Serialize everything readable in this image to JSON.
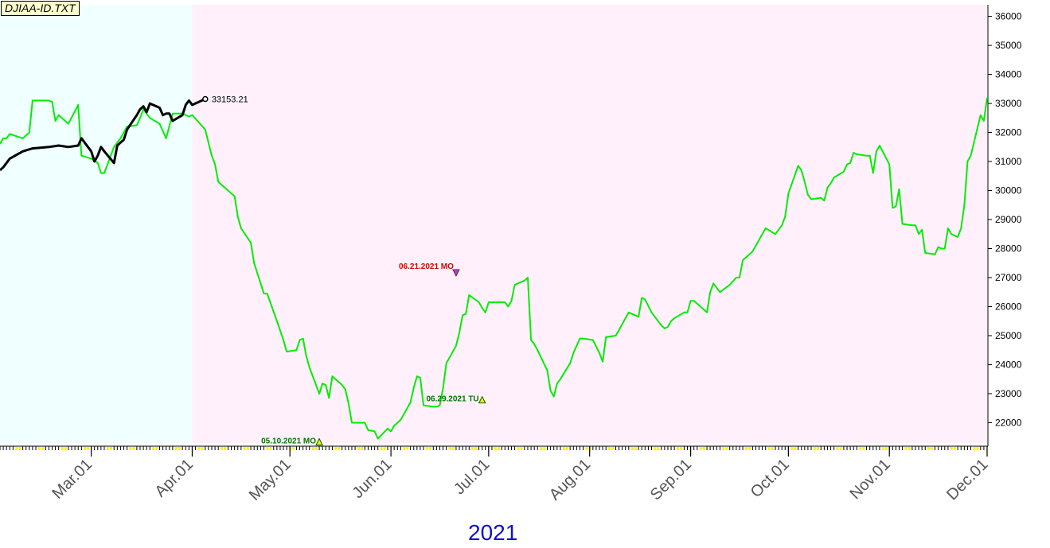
{
  "file_label": "DJIAA-ID.TXT",
  "chart_data": {
    "type": "line",
    "x_axis": {
      "tick_labels": [
        "Mar.01",
        "Apr.01",
        "May.01",
        "Jun.01",
        "Jul.01",
        "Aug.01",
        "Sep.01",
        "Oct.01",
        "Nov.01",
        "Dec.01"
      ],
      "year_label": "2021",
      "range": [
        "2021-02-01",
        "2021-12-01"
      ]
    },
    "y_axis": {
      "tick_labels": [
        "22000",
        "23000",
        "24000",
        "25000",
        "26000",
        "27000",
        "28000",
        "29000",
        "30000",
        "31000",
        "32000",
        "33000",
        "34000",
        "35000",
        "36000"
      ],
      "ylim": [
        21300,
        36400
      ],
      "position": "right"
    },
    "regions": [
      {
        "from": "2021-02-01",
        "to": "2021-04-01",
        "color": "#f0ffff"
      },
      {
        "from": "2021-04-01",
        "to": "2021-12-01",
        "color": "#fff0fb"
      }
    ],
    "series": [
      {
        "color": "#00ee00",
        "points": [
          [
            "2021-02-01",
            31600
          ],
          [
            "2021-02-02",
            31800
          ],
          [
            "2021-02-03",
            31800
          ],
          [
            "2021-02-04",
            31950
          ],
          [
            "2021-02-08",
            31800
          ],
          [
            "2021-02-10",
            32000
          ],
          [
            "2021-02-11",
            33100
          ],
          [
            "2021-02-16",
            33100
          ],
          [
            "2021-02-17",
            33050
          ],
          [
            "2021-02-18",
            32400
          ],
          [
            "2021-02-19",
            32600
          ],
          [
            "2021-02-22",
            32300
          ],
          [
            "2021-02-25",
            32950
          ],
          [
            "2021-02-26",
            31200
          ],
          [
            "2021-03-01",
            31100
          ],
          [
            "2021-03-03",
            30950
          ],
          [
            "2021-03-04",
            30600
          ],
          [
            "2021-03-05",
            30600
          ],
          [
            "2021-03-08",
            31500
          ],
          [
            "2021-03-10",
            31800
          ],
          [
            "2021-03-11",
            32000
          ],
          [
            "2021-03-12",
            32200
          ],
          [
            "2021-03-15",
            32250
          ],
          [
            "2021-03-16",
            32500
          ],
          [
            "2021-03-17",
            32800
          ],
          [
            "2021-03-19",
            32500
          ],
          [
            "2021-03-22",
            32300
          ],
          [
            "2021-03-24",
            31800
          ],
          [
            "2021-03-26",
            32650
          ],
          [
            "2021-03-29",
            32650
          ],
          [
            "2021-03-31",
            32550
          ],
          [
            "2021-04-01",
            32600
          ],
          [
            "2021-04-05",
            32100
          ],
          [
            "2021-04-07",
            31200
          ],
          [
            "2021-04-08",
            30900
          ],
          [
            "2021-04-09",
            30300
          ],
          [
            "2021-04-12",
            30000
          ],
          [
            "2021-04-13",
            29900
          ],
          [
            "2021-04-14",
            29800
          ],
          [
            "2021-04-15",
            29100
          ],
          [
            "2021-04-16",
            28700
          ],
          [
            "2021-04-19",
            28200
          ],
          [
            "2021-04-20",
            27500
          ],
          [
            "2021-04-23",
            26450
          ],
          [
            "2021-04-24",
            26450
          ],
          [
            "2021-04-27",
            25500
          ],
          [
            "2021-04-29",
            24850
          ],
          [
            "2021-04-30",
            24450
          ],
          [
            "2021-05-03",
            24500
          ],
          [
            "2021-05-04",
            24850
          ],
          [
            "2021-05-05",
            24900
          ],
          [
            "2021-05-06",
            24300
          ],
          [
            "2021-05-07",
            23900
          ],
          [
            "2021-05-10",
            23000
          ],
          [
            "2021-05-11",
            23350
          ],
          [
            "2021-05-12",
            23300
          ],
          [
            "2021-05-13",
            22850
          ],
          [
            "2021-05-14",
            23600
          ],
          [
            "2021-05-17",
            23300
          ],
          [
            "2021-05-18",
            23150
          ],
          [
            "2021-05-19",
            22650
          ],
          [
            "2021-05-20",
            22000
          ],
          [
            "2021-05-24",
            22000
          ],
          [
            "2021-05-25",
            21750
          ],
          [
            "2021-05-27",
            21700
          ],
          [
            "2021-05-28",
            21450
          ],
          [
            "2021-05-31",
            21800
          ],
          [
            "2021-06-01",
            21700
          ],
          [
            "2021-06-02",
            21900
          ],
          [
            "2021-06-04",
            22100
          ],
          [
            "2021-06-07",
            22700
          ],
          [
            "2021-06-08",
            23200
          ],
          [
            "2021-06-09",
            23600
          ],
          [
            "2021-06-10",
            23550
          ],
          [
            "2021-06-11",
            22600
          ],
          [
            "2021-06-14",
            22550
          ],
          [
            "2021-06-15",
            22550
          ],
          [
            "2021-06-16",
            22600
          ],
          [
            "2021-06-17",
            23200
          ],
          [
            "2021-06-18",
            24050
          ],
          [
            "2021-06-21",
            24650
          ],
          [
            "2021-06-22",
            25100
          ],
          [
            "2021-06-23",
            25700
          ],
          [
            "2021-06-24",
            25750
          ],
          [
            "2021-06-25",
            26400
          ],
          [
            "2021-06-28",
            26150
          ],
          [
            "2021-06-29",
            25950
          ],
          [
            "2021-06-30",
            25800
          ],
          [
            "2021-07-01",
            26150
          ],
          [
            "2021-07-02",
            26150
          ],
          [
            "2021-07-05",
            26150
          ],
          [
            "2021-07-06",
            26150
          ],
          [
            "2021-07-07",
            26000
          ],
          [
            "2021-07-08",
            26200
          ],
          [
            "2021-07-09",
            26750
          ],
          [
            "2021-07-12",
            26900
          ],
          [
            "2021-07-13",
            27000
          ],
          [
            "2021-07-14",
            24850
          ],
          [
            "2021-07-15",
            24700
          ],
          [
            "2021-07-16",
            24500
          ],
          [
            "2021-07-19",
            23800
          ],
          [
            "2021-07-20",
            23100
          ],
          [
            "2021-07-21",
            22900
          ],
          [
            "2021-07-22",
            23350
          ],
          [
            "2021-07-23",
            23500
          ],
          [
            "2021-07-26",
            24050
          ],
          [
            "2021-07-27",
            24400
          ],
          [
            "2021-07-29",
            24900
          ],
          [
            "2021-07-30",
            24900
          ],
          [
            "2021-08-02",
            24850
          ],
          [
            "2021-08-04",
            24400
          ],
          [
            "2021-08-05",
            24100
          ],
          [
            "2021-08-06",
            24950
          ],
          [
            "2021-08-09",
            25000
          ],
          [
            "2021-08-10",
            25200
          ],
          [
            "2021-08-11",
            25400
          ],
          [
            "2021-08-12",
            25600
          ],
          [
            "2021-08-13",
            25800
          ],
          [
            "2021-08-16",
            25650
          ],
          [
            "2021-08-17",
            26300
          ],
          [
            "2021-08-18",
            26250
          ],
          [
            "2021-08-20",
            25800
          ],
          [
            "2021-08-23",
            25350
          ],
          [
            "2021-08-24",
            25250
          ],
          [
            "2021-08-25",
            25300
          ],
          [
            "2021-08-26",
            25500
          ],
          [
            "2021-08-27",
            25600
          ],
          [
            "2021-08-30",
            25800
          ],
          [
            "2021-08-31",
            25800
          ],
          [
            "2021-09-01",
            26200
          ],
          [
            "2021-09-02",
            26200
          ],
          [
            "2021-09-06",
            25800
          ],
          [
            "2021-09-07",
            26500
          ],
          [
            "2021-09-08",
            26800
          ],
          [
            "2021-09-09",
            26650
          ],
          [
            "2021-09-10",
            26500
          ],
          [
            "2021-09-13",
            26750
          ],
          [
            "2021-09-15",
            27000
          ],
          [
            "2021-09-16",
            27000
          ],
          [
            "2021-09-17",
            27600
          ],
          [
            "2021-09-20",
            27900
          ],
          [
            "2021-09-21",
            28100
          ],
          [
            "2021-09-22",
            28300
          ],
          [
            "2021-09-24",
            28700
          ],
          [
            "2021-09-27",
            28500
          ],
          [
            "2021-09-28",
            28650
          ],
          [
            "2021-09-29",
            28800
          ],
          [
            "2021-09-30",
            29100
          ],
          [
            "2021-10-01",
            29900
          ],
          [
            "2021-10-04",
            30850
          ],
          [
            "2021-10-05",
            30700
          ],
          [
            "2021-10-06",
            30300
          ],
          [
            "2021-10-07",
            29850
          ],
          [
            "2021-10-08",
            29700
          ],
          [
            "2021-10-11",
            29750
          ],
          [
            "2021-10-12",
            29650
          ],
          [
            "2021-10-13",
            30100
          ],
          [
            "2021-10-14",
            30250
          ],
          [
            "2021-10-15",
            30450
          ],
          [
            "2021-10-18",
            30650
          ],
          [
            "2021-10-19",
            30900
          ],
          [
            "2021-10-20",
            30950
          ],
          [
            "2021-10-21",
            31300
          ],
          [
            "2021-10-22",
            31250
          ],
          [
            "2021-10-25",
            31200
          ],
          [
            "2021-10-26",
            31200
          ],
          [
            "2021-10-27",
            30600
          ],
          [
            "2021-10-28",
            31350
          ],
          [
            "2021-10-29",
            31550
          ],
          [
            "2021-11-01",
            30900
          ],
          [
            "2021-11-02",
            29400
          ],
          [
            "2021-11-03",
            29450
          ],
          [
            "2021-11-04",
            30050
          ],
          [
            "2021-11-05",
            28850
          ],
          [
            "2021-11-08",
            28800
          ],
          [
            "2021-11-09",
            28800
          ],
          [
            "2021-11-10",
            28500
          ],
          [
            "2021-11-11",
            28650
          ],
          [
            "2021-11-12",
            27850
          ],
          [
            "2021-11-15",
            27800
          ],
          [
            "2021-11-16",
            28050
          ],
          [
            "2021-11-17",
            28000
          ],
          [
            "2021-11-18",
            28000
          ],
          [
            "2021-11-19",
            28700
          ],
          [
            "2021-11-20",
            28500
          ],
          [
            "2021-11-22",
            28400
          ],
          [
            "2021-11-23",
            28700
          ],
          [
            "2021-11-24",
            29500
          ],
          [
            "2021-11-25",
            31000
          ],
          [
            "2021-11-26",
            31200
          ],
          [
            "2021-11-29",
            32600
          ],
          [
            "2021-11-30",
            32400
          ],
          [
            "2021-12-01",
            33200
          ]
        ]
      },
      {
        "color": "#000000",
        "points": [
          [
            "2021-02-01",
            30700
          ],
          [
            "2021-02-02",
            30800
          ],
          [
            "2021-02-04",
            31100
          ],
          [
            "2021-02-08",
            31350
          ],
          [
            "2021-02-11",
            31450
          ],
          [
            "2021-02-16",
            31500
          ],
          [
            "2021-02-19",
            31550
          ],
          [
            "2021-02-22",
            31500
          ],
          [
            "2021-02-25",
            31550
          ],
          [
            "2021-02-26",
            31800
          ],
          [
            "2021-03-01",
            31350
          ],
          [
            "2021-03-02",
            31000
          ],
          [
            "2021-03-03",
            31200
          ],
          [
            "2021-03-04",
            31500
          ],
          [
            "2021-03-05",
            31350
          ],
          [
            "2021-03-08",
            30950
          ],
          [
            "2021-03-09",
            31550
          ],
          [
            "2021-03-10",
            31650
          ],
          [
            "2021-03-11",
            31750
          ],
          [
            "2021-03-12",
            32100
          ],
          [
            "2021-03-15",
            32600
          ],
          [
            "2021-03-16",
            32800
          ],
          [
            "2021-03-17",
            32900
          ],
          [
            "2021-03-18",
            32700
          ],
          [
            "2021-03-19",
            33000
          ],
          [
            "2021-03-22",
            32850
          ],
          [
            "2021-03-23",
            32600
          ],
          [
            "2021-03-24",
            32650
          ],
          [
            "2021-03-25",
            32650
          ],
          [
            "2021-03-26",
            32400
          ],
          [
            "2021-03-29",
            32600
          ],
          [
            "2021-03-30",
            32950
          ],
          [
            "2021-03-31",
            33100
          ],
          [
            "2021-04-01",
            32950
          ],
          [
            "2021-04-05",
            33153.21
          ]
        ],
        "last_value_label": "33153.21"
      }
    ],
    "annotations": [
      {
        "date": "2021-06-21",
        "value": 27000,
        "text": "06.21.2021 MO",
        "color": "#dd0000",
        "marker": "down-arrow"
      },
      {
        "date": "2021-05-10",
        "value": 21450,
        "text": "05.10.2021 MO",
        "color": "#007700",
        "marker": "up-arrow"
      },
      {
        "date": "2021-06-29",
        "value": 22900,
        "text": "06.29.2021 TU",
        "color": "#007700",
        "marker": "up-arrow"
      }
    ]
  }
}
